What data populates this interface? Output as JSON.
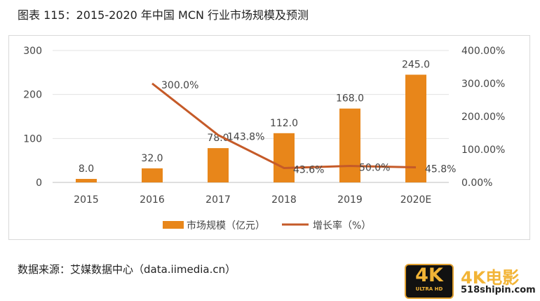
{
  "title": "图表 115：2015-2020 年中国 MCN 行业市场规模及预测",
  "source": "数据来源：艾媒数据中心（data.iimedia.cn）",
  "logo": {
    "badge_big": "4K",
    "badge_small": "ULTRA HD",
    "brand": "4K电影",
    "site": "518shipin.com"
  },
  "chart_data": {
    "type": "bar+line",
    "categories": [
      "2015",
      "2016",
      "2017",
      "2018",
      "2019",
      "2020E"
    ],
    "series": [
      {
        "name": "市场规模（亿元）",
        "type": "bar",
        "axis": "left",
        "color": "#e8861a",
        "values": [
          8.0,
          32.0,
          78.0,
          112.0,
          168.0,
          245.0
        ],
        "labels": [
          "8.0",
          "32.0",
          "78.0",
          "112.0",
          "168.0",
          "245.0"
        ]
      },
      {
        "name": "增长率（%）",
        "type": "line",
        "axis": "right",
        "color": "#c55a28",
        "values": [
          null,
          300.0,
          143.8,
          43.6,
          50.0,
          45.8
        ],
        "labels": [
          "",
          "300.0%",
          "143.8%",
          "43.6%",
          "50.0%",
          "45.8%"
        ]
      }
    ],
    "left_axis": {
      "range": [
        0,
        300
      ],
      "ticks": [
        "0",
        "100",
        "200",
        "300"
      ]
    },
    "right_axis": {
      "range": [
        0,
        400
      ],
      "ticks": [
        "0.00%",
        "100.00%",
        "200.00%",
        "300.00%",
        "400.00%"
      ]
    },
    "grid": true,
    "legend": "bottom"
  }
}
